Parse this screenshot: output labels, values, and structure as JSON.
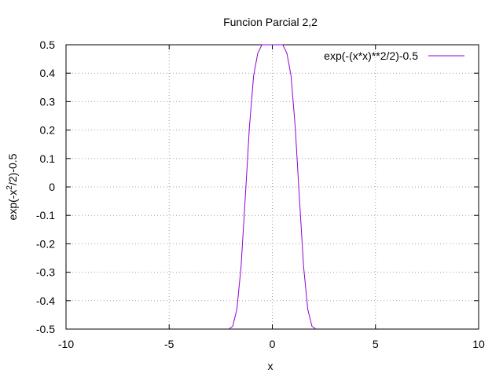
{
  "chart_data": {
    "type": "line",
    "title": "Funcion Parcial 2,2",
    "xlabel": "x",
    "ylabel": "exp(-x^2/2)-0.5",
    "ylabel_parts": {
      "pre": "exp(-x",
      "sup": "2",
      "post": "/2)-0.5"
    },
    "xlim": [
      -10,
      10
    ],
    "ylim": [
      -0.5,
      0.5
    ],
    "xticks": [
      -10,
      -5,
      0,
      5,
      10
    ],
    "xtick_labels": [
      "-10",
      "-5",
      "0",
      "5",
      "10"
    ],
    "yticks": [
      -0.5,
      -0.4,
      -0.3,
      -0.2,
      -0.1,
      0,
      0.1,
      0.2,
      0.3,
      0.4,
      0.5
    ],
    "ytick_labels": [
      "-0.5",
      "-0.4",
      "-0.3",
      "-0.2",
      "-0.1",
      "0",
      "0.1",
      "0.2",
      "0.3",
      "0.4",
      "0.5"
    ],
    "grid": true,
    "legend_position": "top-right",
    "series": [
      {
        "name": "exp(-(x*x)**2/2)-0.5",
        "color": "#9400d3",
        "x": [
          -10,
          -9.798,
          -9.596,
          -9.394,
          -9.192,
          -8.99,
          -8.788,
          -8.586,
          -8.384,
          -8.182,
          -7.98,
          -7.778,
          -7.576,
          -7.374,
          -7.172,
          -6.97,
          -6.768,
          -6.566,
          -6.364,
          -6.162,
          -5.96,
          -5.758,
          -5.556,
          -5.354,
          -5.152,
          -4.95,
          -4.747,
          -4.545,
          -4.343,
          -4.141,
          -3.939,
          -3.737,
          -3.535,
          -3.333,
          -3.131,
          -2.929,
          -2.727,
          -2.525,
          -2.323,
          -2.121,
          -1.919,
          -1.717,
          -1.515,
          -1.313,
          -1.111,
          -0.909,
          -0.707,
          -0.505,
          -0.303,
          -0.101,
          0.101,
          0.303,
          0.505,
          0.707,
          0.909,
          1.111,
          1.313,
          1.515,
          1.717,
          1.919,
          2.121,
          2.323,
          2.525,
          2.727,
          2.929,
          3.131,
          3.333,
          3.535,
          3.737,
          3.939,
          4.141,
          4.343,
          4.545,
          4.747,
          4.95,
          5.152,
          5.354,
          5.556,
          5.758,
          5.96,
          6.162,
          6.364,
          6.566,
          6.768,
          6.97,
          7.172,
          7.374,
          7.576,
          7.778,
          7.98,
          8.182,
          8.384,
          8.586,
          8.788,
          8.99,
          9.192,
          9.394,
          9.596,
          9.798,
          10
        ],
        "y": [
          -0.5,
          -0.5,
          -0.5,
          -0.5,
          -0.5,
          -0.5,
          -0.5,
          -0.5,
          -0.5,
          -0.5,
          -0.5,
          -0.5,
          -0.5,
          -0.5,
          -0.5,
          -0.5,
          -0.5,
          -0.5,
          -0.5,
          -0.5,
          -0.5,
          -0.5,
          -0.5,
          -0.5,
          -0.5,
          -0.5,
          -0.5,
          -0.5,
          -0.5,
          -0.5,
          -0.5,
          -0.5,
          -0.5,
          -0.5,
          -0.5,
          -0.5,
          -0.5,
          -0.5,
          -0.5,
          -0.5,
          -0.49,
          -0.43,
          -0.28,
          -0.04,
          0.21,
          0.39,
          0.47,
          0.5,
          0.5,
          0.5,
          0.5,
          0.5,
          0.5,
          0.47,
          0.39,
          0.21,
          -0.04,
          -0.28,
          -0.43,
          -0.49,
          -0.5,
          -0.5,
          -0.5,
          -0.5,
          -0.5,
          -0.5,
          -0.5,
          -0.5,
          -0.5,
          -0.5,
          -0.5,
          -0.5,
          -0.5,
          -0.5,
          -0.5,
          -0.5,
          -0.5,
          -0.5,
          -0.5,
          -0.5,
          -0.5,
          -0.5,
          -0.5,
          -0.5,
          -0.5,
          -0.5,
          -0.5,
          -0.5,
          -0.5,
          -0.5,
          -0.5,
          -0.5,
          -0.5,
          -0.5,
          -0.5,
          -0.5,
          -0.5,
          -0.5,
          -0.5,
          -0.5
        ]
      }
    ]
  }
}
